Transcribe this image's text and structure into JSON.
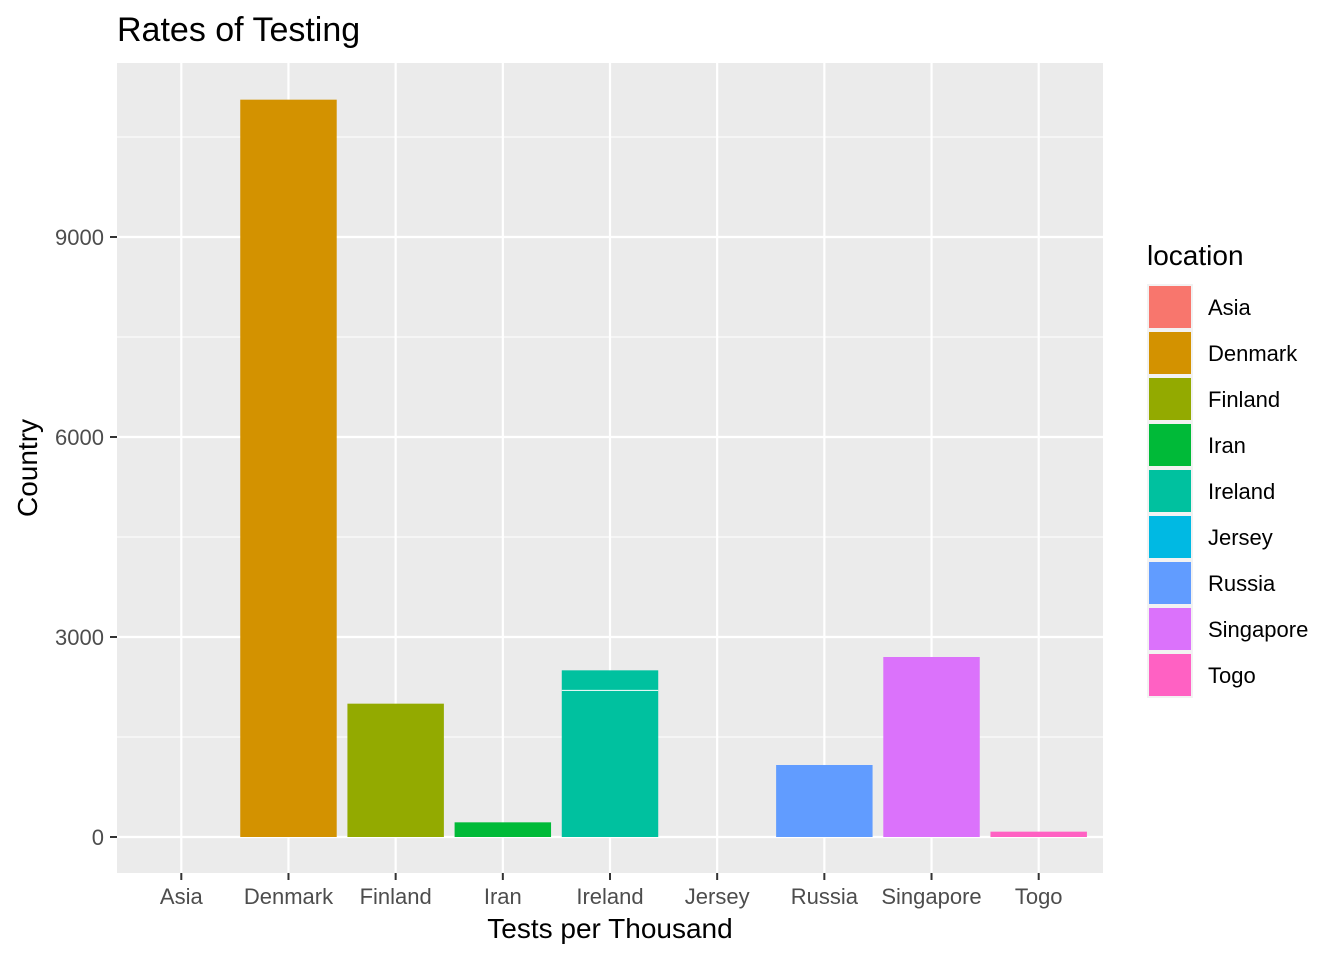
{
  "chart_data": {
    "type": "bar",
    "title": "Rates of Testing",
    "xlabel": "Tests per Thousand",
    "ylabel": "Country",
    "categories": [
      "Asia",
      "Denmark",
      "Finland",
      "Iran",
      "Ireland",
      "Jersey",
      "Russia",
      "Singapore",
      "Togo"
    ],
    "values": [
      0,
      11060,
      2000,
      220,
      2500,
      0,
      1080,
      2700,
      80
    ],
    "stacked_segments": [
      {
        "category": "Ireland",
        "values": [
          2200,
          300
        ]
      }
    ],
    "ylim": [
      -550,
      11600
    ],
    "yticks": [
      0,
      3000,
      6000,
      9000
    ],
    "yticks_labels": [
      "0",
      "3000",
      "6000",
      "9000"
    ],
    "grid": true,
    "legend": {
      "title": "location",
      "position": "right",
      "items": [
        {
          "label": "Asia",
          "color": "#F8766D"
        },
        {
          "label": "Denmark",
          "color": "#D39200"
        },
        {
          "label": "Finland",
          "color": "#93AA00"
        },
        {
          "label": "Iran",
          "color": "#00BA38"
        },
        {
          "label": "Ireland",
          "color": "#00C19F"
        },
        {
          "label": "Jersey",
          "color": "#00B9E3"
        },
        {
          "label": "Russia",
          "color": "#619CFF"
        },
        {
          "label": "Singapore",
          "color": "#DB72FB"
        },
        {
          "label": "Togo",
          "color": "#FF61C3"
        }
      ]
    },
    "colors": {
      "panel_background": "#EBEBEB",
      "grid_line": "#FFFFFF"
    }
  }
}
